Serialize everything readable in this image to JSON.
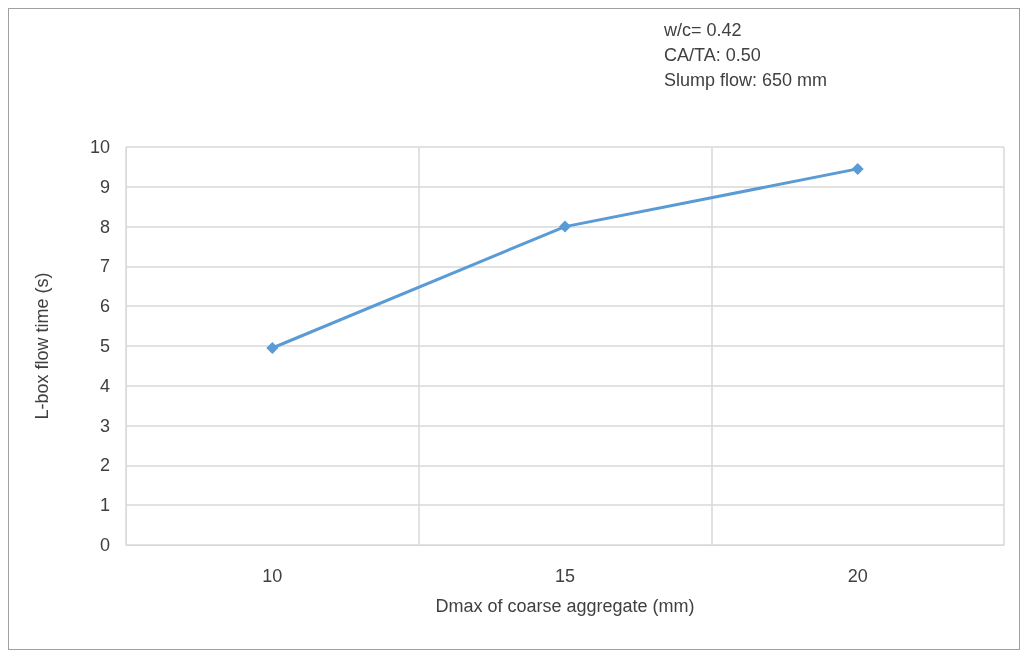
{
  "chart_data": {
    "type": "line",
    "xlabel": "Dmax of coarse aggregate (mm)",
    "ylabel": "L-box flow time (s)",
    "annotations": [
      "w/c= 0.42",
      "CA/TA: 0.50",
      "Slump flow: 650 mm"
    ],
    "categories": [
      "10",
      "15",
      "20"
    ],
    "series": [
      {
        "color": "#5b9bd5",
        "values": [
          4.95,
          8.0,
          9.45
        ]
      }
    ],
    "ylim": [
      0,
      10
    ],
    "yticks": [
      0,
      1,
      2,
      3,
      4,
      5,
      6,
      7,
      8,
      9,
      10
    ],
    "grid": true,
    "marker": "diamond",
    "line_style": "solid"
  }
}
